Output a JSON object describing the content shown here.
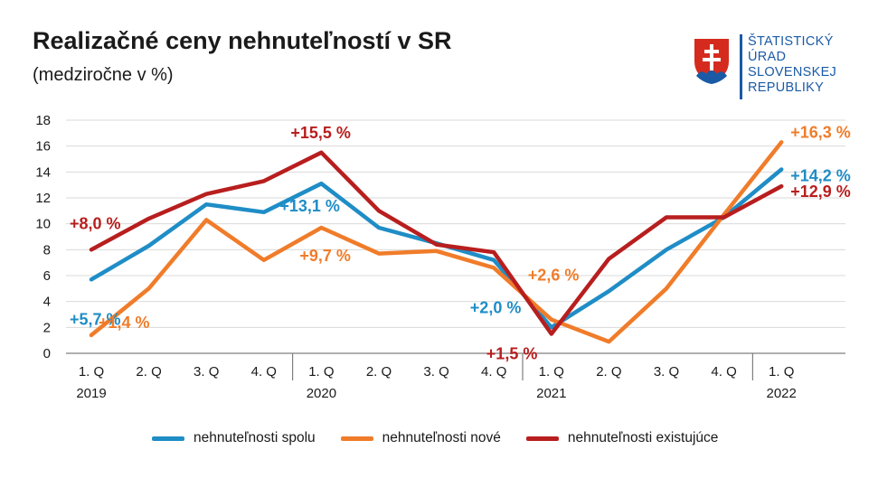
{
  "title": "Realizačné ceny nehnuteľností v SR",
  "subtitle": "(medziročne v %)",
  "logo": {
    "icon": "slovak-coat-of-arms-icon",
    "lines": [
      "ŠTATISTICKÝ",
      "ÚRAD",
      "SLOVENSKEJ",
      "REPUBLIKY"
    ],
    "color": "#1a5aa6"
  },
  "chart_data": {
    "type": "line",
    "categories": [
      "1. Q",
      "2. Q",
      "3. Q",
      "4. Q",
      "1. Q",
      "2. Q",
      "3. Q",
      "4. Q",
      "1. Q",
      "2. Q",
      "3. Q",
      "4. Q",
      "1. Q"
    ],
    "years": [
      {
        "label": "2019",
        "index": 0
      },
      {
        "label": "2020",
        "index": 4
      },
      {
        "label": "2021",
        "index": 8
      },
      {
        "label": "2022",
        "index": 12
      }
    ],
    "ylim": [
      0,
      18
    ],
    "yticks": [
      0,
      2,
      4,
      6,
      8,
      10,
      12,
      14,
      16,
      18
    ],
    "series": [
      {
        "name": "nehnuteľnosti spolu",
        "color": "#1f8dc6",
        "values": [
          5.7,
          8.3,
          11.5,
          10.9,
          13.1,
          9.7,
          8.5,
          7.2,
          2.0,
          4.8,
          8.0,
          10.5,
          14.2
        ]
      },
      {
        "name": "nehnuteľnosti nové",
        "color": "#f07c2a",
        "values": [
          1.4,
          5.0,
          10.3,
          7.2,
          9.7,
          7.7,
          7.9,
          6.6,
          2.6,
          0.9,
          5.0,
          10.7,
          16.3
        ]
      },
      {
        "name": "nehnuteľnosti existujúce",
        "color": "#b81e1e",
        "values": [
          8.0,
          10.4,
          12.3,
          13.3,
          15.5,
          11.0,
          8.4,
          7.8,
          1.5,
          7.3,
          10.5,
          10.5,
          12.9
        ]
      }
    ],
    "annotations": [
      {
        "text": "+8,0 %",
        "series": 2,
        "index": 0
      },
      {
        "text": "+5,7 %",
        "series": 0,
        "index": 0
      },
      {
        "text": "+1,4 %",
        "series": 1,
        "index": 0
      },
      {
        "text": "+15,5 %",
        "series": 2,
        "index": 4
      },
      {
        "text": "+13,1 %",
        "series": 0,
        "index": 4
      },
      {
        "text": "+9,7 %",
        "series": 1,
        "index": 4
      },
      {
        "text": "+2,0 %",
        "series": 0,
        "index": 8
      },
      {
        "text": "+2,6 %",
        "series": 1,
        "index": 8
      },
      {
        "text": "+1,5 %",
        "series": 2,
        "index": 8
      },
      {
        "text": "+16,3 %",
        "series": 1,
        "index": 12
      },
      {
        "text": "+14,2 %",
        "series": 0,
        "index": 12
      },
      {
        "text": "+12,9 %",
        "series": 2,
        "index": 12
      }
    ],
    "grid": "horizontal",
    "legend": "bottom"
  }
}
